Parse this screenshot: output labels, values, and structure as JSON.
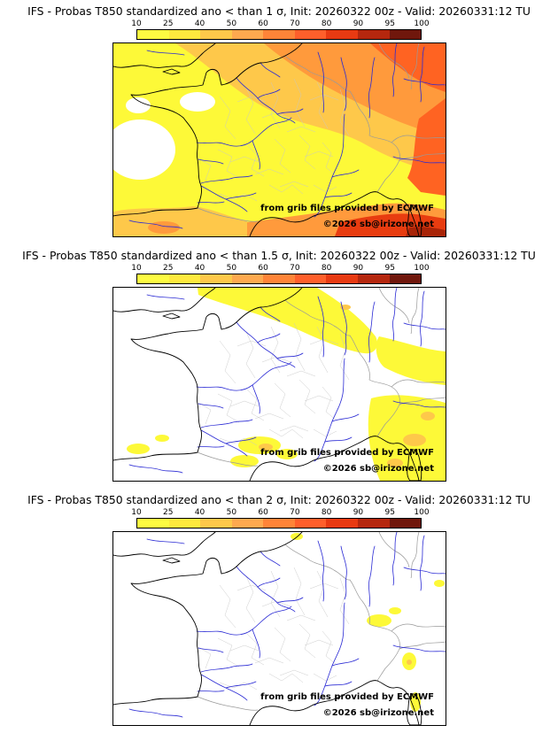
{
  "palette": {
    "yellow": "#fdf938",
    "gold": "#fec84a",
    "orange": "#ff9a3c",
    "orange_red": "#ff6322",
    "red": "#e83c10",
    "dark_red": "#a82408",
    "river": "#2a2ad4",
    "border": "#999999",
    "coast": "#000000"
  },
  "colorbar": {
    "tick_labels": [
      "10",
      "25",
      "40",
      "50",
      "60",
      "70",
      "80",
      "90",
      "95",
      "100"
    ],
    "colors": [
      "#fdfb42",
      "#fee93e",
      "#fec84a",
      "#fea94f",
      "#ff8438",
      "#ff5f2b",
      "#e83a12",
      "#b5270e",
      "#70170c"
    ]
  },
  "panels": [
    {
      "title": "IFS - Probas T850  standardized ano < than 1 σ, Init: 20260322 00z - Valid: 20260331:12 TU",
      "threshold": "1 σ",
      "attribution_line1": "from grib files provided by ECMWF",
      "attribution_line2": "©2026 sb@irizone.net"
    },
    {
      "title": "IFS - Probas T850  standardized ano < than 1.5 σ, Init: 20260322 00z - Valid: 20260331:12 TU",
      "threshold": "1.5 σ",
      "attribution_line1": "from grib files provided by ECMWF",
      "attribution_line2": "©2026 sb@irizone.net"
    },
    {
      "title": "IFS - Probas T850  standardized ano < than 2 σ, Init: 20260322 00z - Valid: 20260331:12 TU",
      "threshold": "2 σ",
      "attribution_line1": "from grib files provided by ECMWF",
      "attribution_line2": "©2026 sb@irizone.net"
    }
  ],
  "chart_data": {
    "type": "heatmap",
    "variable": "Probability of T850 standardized anomaly below threshold",
    "model": "IFS",
    "init": "20260322 00z",
    "valid": "20260331:12 TU",
    "probability_scale_percent": [
      10,
      25,
      40,
      50,
      60,
      70,
      80,
      90,
      95,
      100
    ],
    "maps": [
      {
        "threshold": "< 1 σ",
        "summary": "Probabilities 25–95% cover nearly the whole France/western-Europe domain; highest values (70–95%) over the east, southeast, Mediterranean and bottom-right corner; lowest (<10%) in a patch west/south of Brittany."
      },
      {
        "threshold": "< 1.5 σ",
        "summary": "Scattered 10–40% areas over northern France and Benelux, the far northeast, the Alps/Po valley, the Ligurian coast and Corsica region, plus small spots in the southwest; elsewhere below 10%."
      },
      {
        "threshold": "< 2 σ",
        "summary": "Almost the entire domain below 10%; only a few small 10–25% spots near Switzerland, the Ligurian coast, Corsica and isolated points in the north."
      }
    ]
  }
}
